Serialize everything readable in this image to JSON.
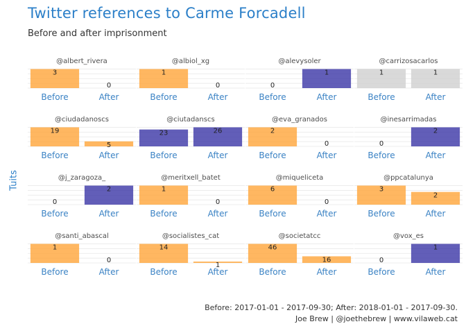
{
  "title": "Twitter references to Carme Forcadell",
  "subtitle": "Before and after imprisonment",
  "ylabel": "Tuits",
  "caption_line1": "Before: 2017-01-01 - 2017-09-30; After: 2018-01-01 - 2017-09-30.",
  "caption_line2": "Joe Brew | @joethebrew | www.vilaweb.cat",
  "colors": {
    "more_before": "#ffa53a",
    "more_after": "#3b36a6",
    "equal": "#d0d0d0",
    "title": "#2b7fc8",
    "tick": "#3a82c4"
  },
  "chart_data": {
    "type": "bar",
    "categories": [
      "Before",
      "After"
    ],
    "facet_scales": "free_y",
    "panels": [
      {
        "title": "@albert_rivera",
        "values": [
          3,
          0
        ]
      },
      {
        "title": "@albiol_xg",
        "values": [
          1,
          0
        ]
      },
      {
        "title": "@alevysoler",
        "values": [
          0,
          1
        ]
      },
      {
        "title": "@carrizosacarlos",
        "values": [
          1,
          1
        ]
      },
      {
        "title": "@ciudadanoscs",
        "values": [
          19,
          5
        ]
      },
      {
        "title": "@ciutadanscs",
        "values": [
          23,
          26
        ]
      },
      {
        "title": "@eva_granados",
        "values": [
          2,
          0
        ]
      },
      {
        "title": "@inesarrimadas",
        "values": [
          0,
          2
        ]
      },
      {
        "title": "@j_zaragoza_",
        "values": [
          0,
          2
        ]
      },
      {
        "title": "@meritxell_batet",
        "values": [
          1,
          0
        ]
      },
      {
        "title": "@miqueliceta",
        "values": [
          6,
          0
        ]
      },
      {
        "title": "@ppcatalunya",
        "values": [
          3,
          2
        ]
      },
      {
        "title": "@santi_abascal",
        "values": [
          1,
          0
        ]
      },
      {
        "title": "@socialistes_cat",
        "values": [
          14,
          1
        ]
      },
      {
        "title": "@societatcc",
        "values": [
          46,
          16
        ]
      },
      {
        "title": "@vox_es",
        "values": [
          0,
          1
        ]
      }
    ]
  }
}
